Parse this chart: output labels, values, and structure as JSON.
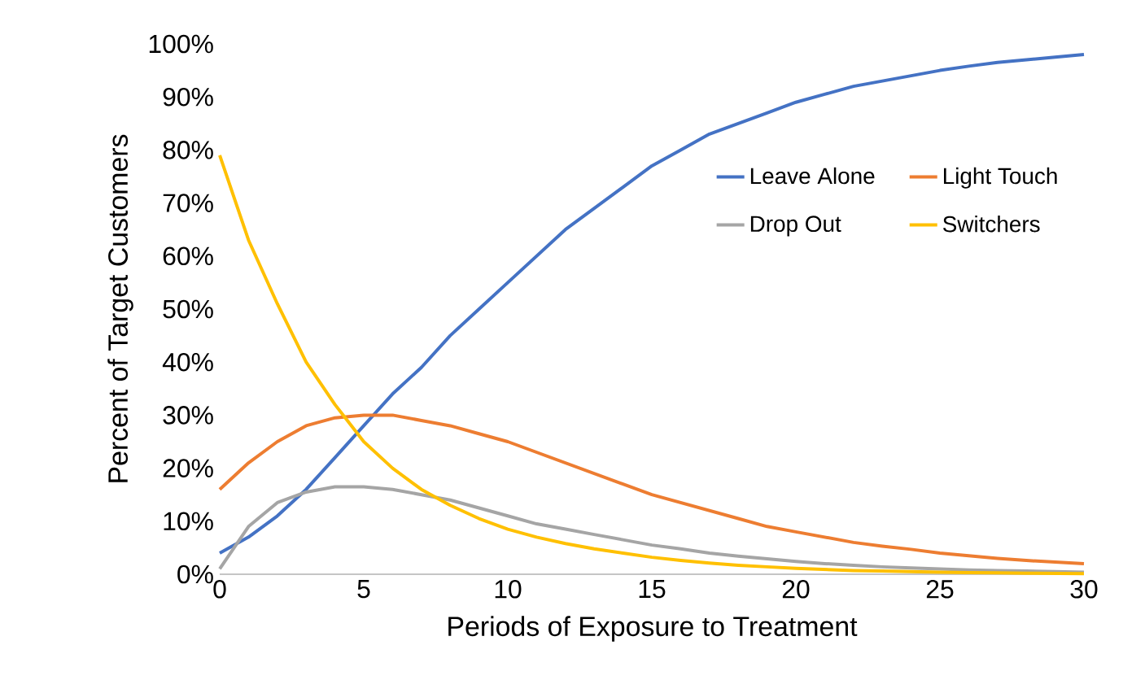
{
  "chart_data": {
    "type": "line",
    "xlabel": "Periods of Exposure to Treatment",
    "ylabel": "Percent of Target Customers",
    "x": [
      0,
      1,
      2,
      3,
      4,
      5,
      6,
      7,
      8,
      9,
      10,
      11,
      12,
      13,
      14,
      15,
      16,
      17,
      18,
      19,
      20,
      21,
      22,
      23,
      24,
      25,
      26,
      27,
      28,
      29,
      30
    ],
    "series": [
      {
        "name": "Leave Alone",
        "color": "#4472c4",
        "values": [
          4,
          7,
          11,
          16,
          22,
          28,
          34,
          39,
          45,
          50,
          55,
          60,
          65,
          69,
          73,
          77,
          80,
          83,
          85,
          87,
          89,
          90.5,
          92,
          93,
          94,
          95,
          95.8,
          96.5,
          97,
          97.5,
          98
        ]
      },
      {
        "name": "Light Touch",
        "color": "#ed7d31",
        "values": [
          16,
          21,
          25,
          28,
          29.5,
          30,
          30,
          29,
          28,
          26.5,
          25,
          23,
          21,
          19,
          17,
          15,
          13.5,
          12,
          10.5,
          9,
          8,
          7,
          6,
          5.3,
          4.7,
          4,
          3.5,
          3,
          2.6,
          2.3,
          2
        ]
      },
      {
        "name": "Drop Out",
        "color": "#a5a5a5",
        "values": [
          1,
          9,
          13.5,
          15.5,
          16.5,
          16.5,
          16,
          15,
          14,
          12.5,
          11,
          9.5,
          8.5,
          7.5,
          6.5,
          5.5,
          4.8,
          4,
          3.4,
          2.9,
          2.4,
          2,
          1.7,
          1.4,
          1.2,
          1,
          0.8,
          0.7,
          0.6,
          0.5,
          0.4
        ]
      },
      {
        "name": "Switchers",
        "color": "#ffc000",
        "values": [
          79,
          63,
          51,
          40,
          32,
          25,
          20,
          16,
          13,
          10.5,
          8.5,
          7,
          5.8,
          4.8,
          4,
          3.2,
          2.6,
          2.1,
          1.7,
          1.4,
          1.1,
          0.9,
          0.7,
          0.6,
          0.5,
          0.4,
          0.3,
          0.25,
          0.2,
          0.15,
          0.1
        ]
      }
    ],
    "xlim": [
      0,
      30
    ],
    "xticks": [
      0,
      5,
      10,
      15,
      20,
      25,
      30
    ],
    "ylim": [
      0,
      100
    ],
    "yticks": [
      {
        "value": 0,
        "label": "0%"
      },
      {
        "value": 10,
        "label": "10%"
      },
      {
        "value": 20,
        "label": "20%"
      },
      {
        "value": 30,
        "label": "30%"
      },
      {
        "value": 40,
        "label": "40%"
      },
      {
        "value": 50,
        "label": "50%"
      },
      {
        "value": 60,
        "label": "60%"
      },
      {
        "value": 70,
        "label": "70%"
      },
      {
        "value": 80,
        "label": "80%"
      },
      {
        "value": 90,
        "label": "90%"
      },
      {
        "value": 100,
        "label": "100%"
      }
    ],
    "grid": false,
    "legend": "right",
    "marker": "none",
    "line_style": "solid"
  }
}
